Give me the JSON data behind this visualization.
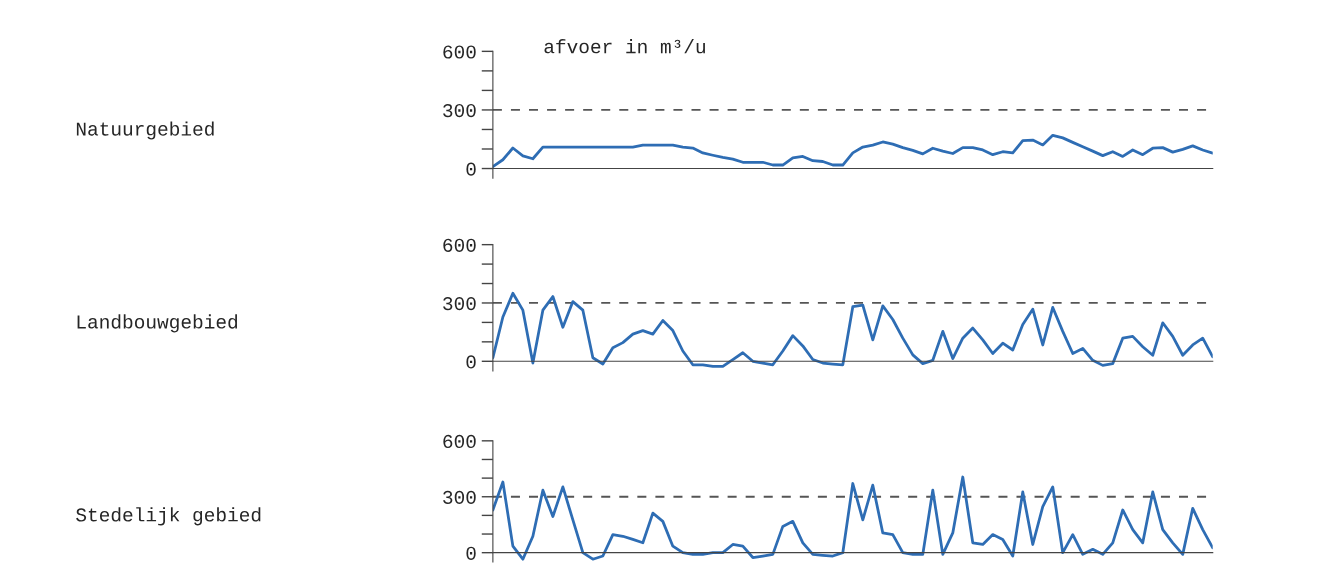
{
  "chart_data": [
    {
      "type": "line",
      "title": "afvoer in m³/u",
      "ylabel": "Natuurgebied",
      "categories": [
        null,
        null,
        null,
        null,
        null,
        null,
        null,
        null,
        null,
        null,
        null,
        null,
        null,
        null,
        null,
        null,
        null,
        null,
        null,
        null,
        null,
        null,
        null,
        null,
        null,
        null,
        null,
        null,
        null,
        null,
        null,
        null,
        null,
        null,
        null,
        null,
        null,
        null,
        null,
        null,
        null,
        null,
        null,
        null,
        null,
        null,
        null,
        null,
        null,
        null,
        null,
        null,
        null,
        null,
        null,
        null,
        null,
        null,
        null,
        null,
        null,
        null,
        null,
        null,
        null,
        null,
        null,
        null,
        null,
        null,
        null,
        null,
        null
      ],
      "series": [
        {
          "color": "#2e6db4",
          "values": [
            10,
            45,
            105,
            65,
            50,
            110,
            110,
            110,
            110,
            110,
            110,
            110,
            110,
            110,
            110,
            120,
            120,
            120,
            120,
            110,
            105,
            80,
            68,
            57,
            48,
            32,
            32,
            32,
            18,
            18,
            54,
            62,
            40,
            36,
            18,
            18,
            80,
            110,
            120,
            136,
            125,
            107,
            93,
            75,
            104,
            89,
            77,
            107,
            107,
            95,
            71,
            86,
            80,
            143,
            146,
            121,
            170,
            157,
            134,
            111,
            89,
            66,
            86,
            62,
            95,
            71,
            104,
            107,
            84,
            98,
            116,
            95,
            79
          ]
        }
      ],
      "ylim": [
        -50,
        600
      ],
      "yticks": [
        0,
        {
          "value": 100,
          "label": null
        },
        {
          "value": 200,
          "label": null
        },
        300,
        {
          "value": 400,
          "label": null
        },
        {
          "value": 500,
          "label": null
        },
        600
      ],
      "ref_lines": [
        {
          "axis": "y",
          "value": 300,
          "color": "#555555",
          "line_style": "dashed"
        }
      ],
      "tick_labels": "y",
      "grid": false,
      "legend": false
    },
    {
      "type": "line",
      "ylabel": "Landbouwgebied",
      "categories": [
        null,
        null,
        null,
        null,
        null,
        null,
        null,
        null,
        null,
        null,
        null,
        null,
        null,
        null,
        null,
        null,
        null,
        null,
        null,
        null,
        null,
        null,
        null,
        null,
        null,
        null,
        null,
        null,
        null,
        null,
        null,
        null,
        null,
        null,
        null,
        null,
        null,
        null,
        null,
        null,
        null,
        null,
        null,
        null,
        null,
        null,
        null,
        null,
        null,
        null,
        null,
        null,
        null,
        null,
        null,
        null,
        null,
        null,
        null,
        null,
        null,
        null,
        null,
        null,
        null,
        null,
        null,
        null,
        null,
        null,
        null,
        null,
        null
      ],
      "series": [
        {
          "color": "#2e6db4",
          "values": [
            18,
            228,
            350,
            263,
            -9,
            263,
            333,
            175,
            307,
            263,
            18,
            -14,
            70,
            96,
            140,
            158,
            140,
            210,
            158,
            53,
            -18,
            -18,
            -26,
            -26,
            9,
            44,
            0,
            -9,
            -18,
            53,
            132,
            79,
            9,
            -9,
            -14,
            -18,
            281,
            289,
            110,
            285,
            215,
            119,
            33,
            -12,
            5,
            154,
            14,
            119,
            171,
            110,
            40,
            93,
            58,
            189,
            268,
            84,
            277,
            154,
            40,
            66,
            5,
            -21,
            -12,
            119,
            128,
            75,
            31,
            198,
            128,
            31,
            84,
            119,
            23
          ]
        }
      ],
      "ylim": [
        -50,
        600
      ],
      "yticks": [
        0,
        {
          "value": 100,
          "label": null
        },
        {
          "value": 200,
          "label": null
        },
        300,
        {
          "value": 400,
          "label": null
        },
        {
          "value": 500,
          "label": null
        },
        600
      ],
      "ref_lines": [
        {
          "axis": "y",
          "value": 300,
          "color": "#555555",
          "line_style": "dashed"
        }
      ],
      "tick_labels": "y",
      "grid": false,
      "legend": false
    },
    {
      "type": "line",
      "ylabel": "Stedelijk gebied",
      "categories": [
        null,
        null,
        null,
        null,
        null,
        null,
        null,
        null,
        null,
        null,
        null,
        null,
        null,
        null,
        null,
        null,
        null,
        null,
        null,
        null,
        null,
        null,
        null,
        null,
        null,
        null,
        null,
        null,
        null,
        null,
        null,
        null,
        null,
        null,
        null,
        null,
        null,
        null,
        null,
        null,
        null,
        null,
        null,
        null,
        null,
        null,
        null,
        null,
        null,
        null,
        null,
        null,
        null,
        null,
        null,
        null,
        null,
        null,
        null,
        null,
        null,
        null,
        null,
        null,
        null,
        null,
        null,
        null,
        null,
        null,
        null,
        null,
        null
      ],
      "series": [
        {
          "color": "#2e6db4",
          "values": [
            229,
            379,
            35,
            -35,
            88,
            335,
            194,
            353,
            176,
            0,
            -35,
            -18,
            97,
            88,
            71,
            53,
            212,
            168,
            35,
            0,
            -9,
            -9,
            0,
            0,
            44,
            35,
            -26,
            -18,
            -9,
            141,
            168,
            53,
            -9,
            -14,
            -18,
            0,
            371,
            176,
            362,
            106,
            97,
            0,
            -9,
            -9,
            335,
            -9,
            106,
            406,
            53,
            44,
            97,
            71,
            -18,
            326,
            44,
            247,
            353,
            0,
            97,
            -9,
            18,
            -9,
            53,
            229,
            124,
            53,
            326,
            124,
            53,
            -9,
            238,
            124,
            26
          ]
        }
      ],
      "ylim": [
        -50,
        600
      ],
      "yticks": [
        0,
        {
          "value": 100,
          "label": null
        },
        {
          "value": 200,
          "label": null
        },
        300,
        {
          "value": 400,
          "label": null
        },
        {
          "value": 500,
          "label": null
        },
        600
      ],
      "ref_lines": [
        {
          "axis": "y",
          "value": 300,
          "color": "#555555",
          "line_style": "dashed"
        }
      ],
      "tick_labels": "y",
      "grid": false,
      "legend": false
    }
  ]
}
